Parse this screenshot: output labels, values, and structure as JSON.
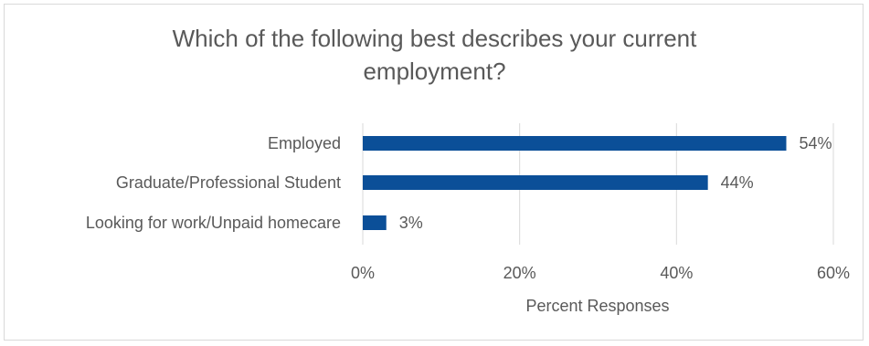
{
  "chart_data": {
    "type": "bar",
    "orientation": "horizontal",
    "title": [
      "Which of the following best describes your current",
      "employment?"
    ],
    "categories": [
      "Employed",
      "Graduate/Professional Student",
      "Looking for work/Unpaid homecare"
    ],
    "values": [
      54,
      44,
      3
    ],
    "data_labels": [
      "54%",
      "44%",
      "3%"
    ],
    "xlabel": "Percent Responses",
    "ylabel": "",
    "xlim": [
      0,
      60
    ],
    "xticks": [
      0,
      20,
      40,
      60
    ],
    "xtick_labels": [
      "0%",
      "20%",
      "40%",
      "60%"
    ],
    "grid": "vertical",
    "legend": "none",
    "bar_color": "#0b4f98",
    "grid_color": "#d9d9d9",
    "text_color": "#595959"
  }
}
